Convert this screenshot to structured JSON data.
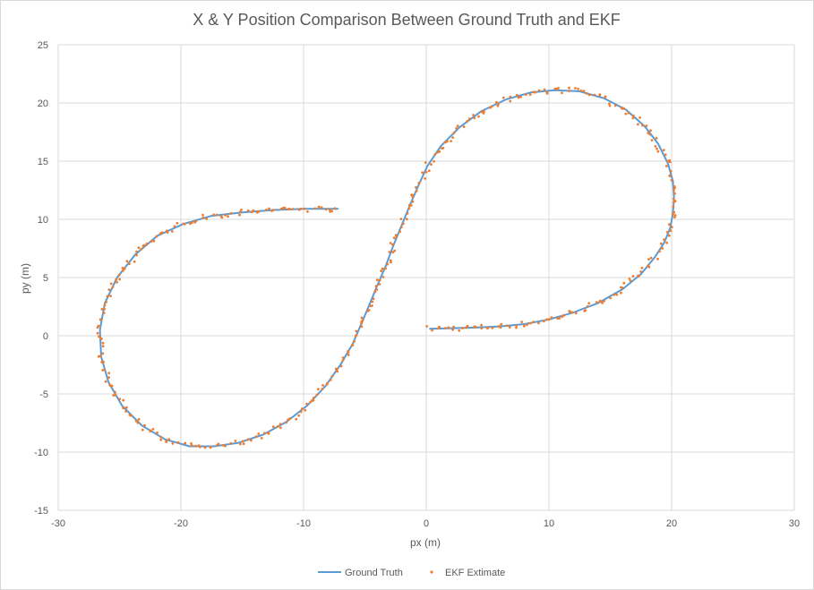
{
  "chart_data": {
    "type": "line",
    "title": "X & Y Position Comparison Between Ground Truth and EKF",
    "xlabel": "px (m)",
    "ylabel": "py (m)",
    "xlim": [
      -30,
      30
    ],
    "ylim": [
      -15,
      25
    ],
    "xticks": [
      "-30",
      "-20",
      "-10",
      "0",
      "10",
      "20",
      "30"
    ],
    "yticks": [
      "-15",
      "-10",
      "-5",
      "0",
      "5",
      "10",
      "15",
      "20",
      "25"
    ],
    "grid": true,
    "legend_position": "bottom",
    "series": [
      {
        "name": "Ground Truth",
        "kind": "line",
        "color": "#5b9bd5",
        "points": [
          [
            0.3,
            0.6
          ],
          [
            2,
            0.65
          ],
          [
            4,
            0.7
          ],
          [
            6,
            0.8
          ],
          [
            8,
            1.0
          ],
          [
            10,
            1.4
          ],
          [
            12,
            2.0
          ],
          [
            14,
            2.8
          ],
          [
            16,
            4.0
          ],
          [
            17.5,
            5.3
          ],
          [
            18.6,
            6.7
          ],
          [
            19.4,
            8.0
          ],
          [
            19.9,
            9.3
          ],
          [
            20.1,
            10.5
          ],
          [
            20.2,
            11.8
          ],
          [
            20.1,
            13.3
          ],
          [
            19.7,
            14.8
          ],
          [
            18.9,
            16.5
          ],
          [
            17.8,
            18.0
          ],
          [
            16.3,
            19.4
          ],
          [
            14.5,
            20.4
          ],
          [
            12.5,
            21.0
          ],
          [
            10.5,
            21.1
          ],
          [
            8.5,
            20.9
          ],
          [
            6.5,
            20.3
          ],
          [
            4.5,
            19.3
          ],
          [
            2.7,
            17.9
          ],
          [
            1.2,
            16.3
          ],
          [
            0.1,
            14.6
          ],
          [
            -0.6,
            13.0
          ],
          [
            -1.3,
            11.3
          ],
          [
            -2.0,
            9.5
          ],
          [
            -2.7,
            7.7
          ],
          [
            -3.3,
            6.0
          ],
          [
            -4.0,
            4.3
          ],
          [
            -4.7,
            2.5
          ],
          [
            -5.3,
            1.0
          ],
          [
            -6.0,
            -0.7
          ],
          [
            -7.0,
            -2.5
          ],
          [
            -8.2,
            -4.3
          ],
          [
            -9.7,
            -6.0
          ],
          [
            -11.4,
            -7.4
          ],
          [
            -13.3,
            -8.5
          ],
          [
            -15.3,
            -9.2
          ],
          [
            -17.3,
            -9.5
          ],
          [
            -19.3,
            -9.5
          ],
          [
            -21.3,
            -8.9
          ],
          [
            -23.2,
            -7.7
          ],
          [
            -24.8,
            -6.0
          ],
          [
            -25.9,
            -4.0
          ],
          [
            -26.5,
            -1.8
          ],
          [
            -26.6,
            0.5
          ],
          [
            -26.2,
            2.8
          ],
          [
            -25.2,
            5.0
          ],
          [
            -23.7,
            7.0
          ],
          [
            -21.9,
            8.6
          ],
          [
            -19.8,
            9.6
          ],
          [
            -17.5,
            10.3
          ],
          [
            -15.0,
            10.6
          ],
          [
            -12.5,
            10.8
          ],
          [
            -10.0,
            10.9
          ],
          [
            -8.5,
            10.9
          ],
          [
            -7.2,
            10.9
          ]
        ]
      },
      {
        "name": "EKF Extimate",
        "kind": "scatter",
        "color": "#ed7d31"
      }
    ]
  }
}
